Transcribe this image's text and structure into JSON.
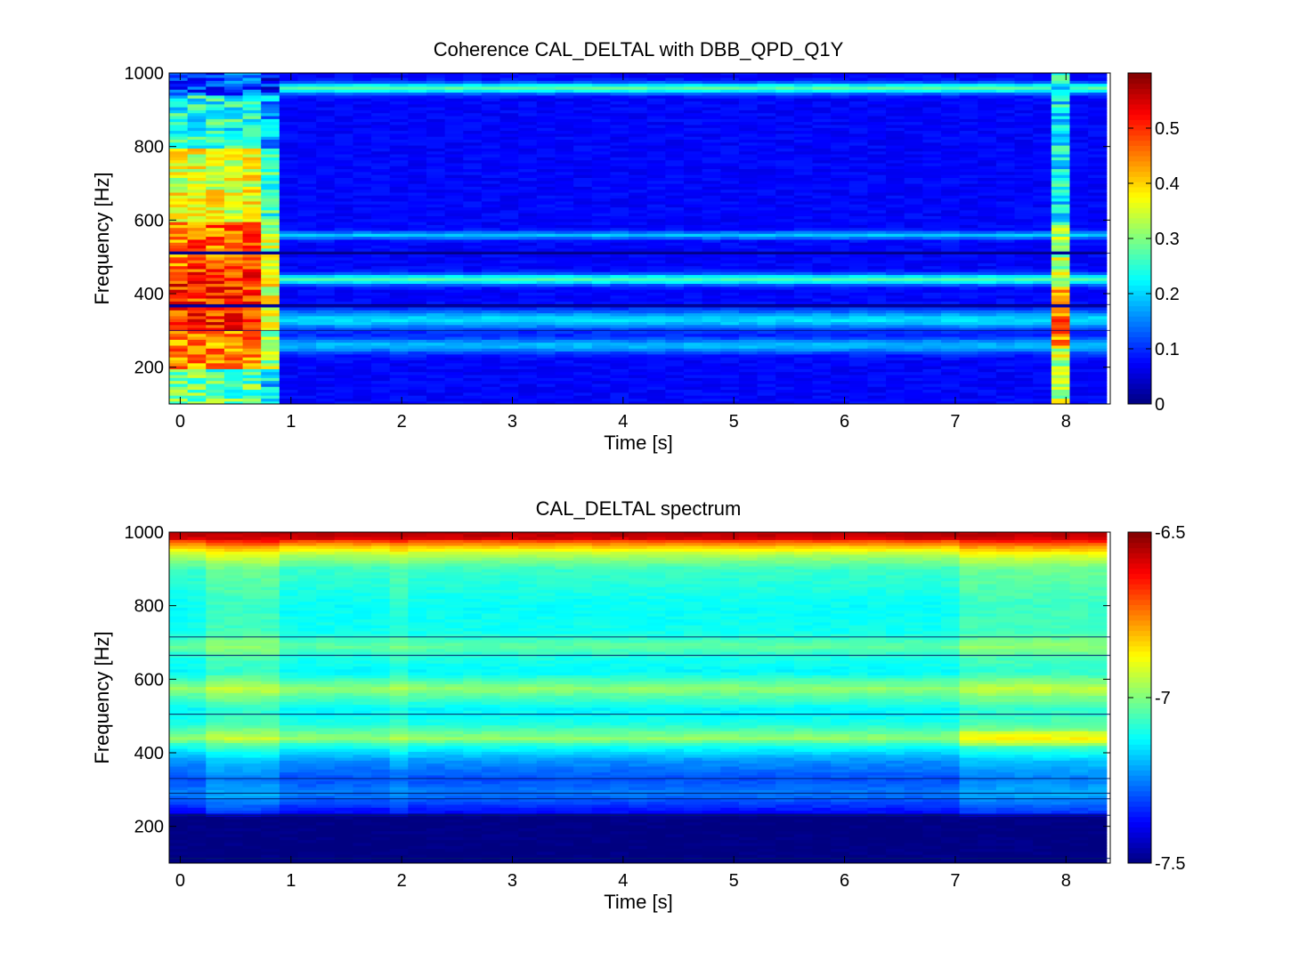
{
  "figure": {
    "background": "#ffffff"
  },
  "chart_data": [
    {
      "type": "heatmap",
      "title": "Coherence CAL_DELTAL with DBB_QPD_Q1Y",
      "xlabel": "Time [s]",
      "ylabel": "Frequency [Hz]",
      "xlim": [
        -0.1,
        8.4
      ],
      "ylim": [
        100,
        1000
      ],
      "x_ticks": [
        "0",
        "1",
        "2",
        "3",
        "4",
        "5",
        "6",
        "7",
        "8"
      ],
      "y_ticks": [
        "200",
        "400",
        "600",
        "800",
        "1000"
      ],
      "colorbar": {
        "range": [
          0,
          0.6
        ],
        "ticks": [
          "0",
          "0.1",
          "0.2",
          "0.3",
          "0.4",
          "0.5"
        ],
        "colormap": "jet"
      },
      "time_bins": 51,
      "time_step": 0.166,
      "freq_range": [
        100,
        1000
      ],
      "freq_bin_hz": 8,
      "background_level": 0.06,
      "high_coherence_time_ranges": [
        [
          -0.1,
          0.92
        ],
        [
          7.93,
          8.1
        ]
      ],
      "bands": [
        {
          "f": 960,
          "width": 14,
          "level": 0.2
        },
        {
          "f": 440,
          "width": 14,
          "level": 0.19
        },
        {
          "f": 560,
          "width": 10,
          "level": 0.12
        },
        {
          "f": 330,
          "width": 25,
          "level": 0.13
        },
        {
          "f": 260,
          "width": 20,
          "level": 0.11
        }
      ],
      "notches": [
        510,
        370,
        300
      ]
    },
    {
      "type": "heatmap",
      "title": "CAL_DELTAL spectrum",
      "xlabel": "Time [s]",
      "ylabel": "Frequency [Hz]",
      "xlim": [
        -0.1,
        8.4
      ],
      "ylim": [
        100,
        1000
      ],
      "x_ticks": [
        "0",
        "1",
        "2",
        "3",
        "4",
        "5",
        "6",
        "7",
        "8"
      ],
      "y_ticks": [
        "200",
        "400",
        "600",
        "800",
        "1000"
      ],
      "colorbar": {
        "range": [
          -7.5,
          -6.5
        ],
        "ticks": [
          "-6.5",
          "-7",
          "-7.5"
        ],
        "colormap": "jet"
      },
      "time_bins": 51,
      "time_step": 0.166,
      "freq_range": [
        100,
        1000
      ],
      "freq_bin_hz": 8,
      "profile_hz": [
        100,
        225,
        240,
        290,
        330,
        380,
        420,
        440,
        480,
        520,
        560,
        575,
        620,
        660,
        690,
        730,
        800,
        900,
        940,
        960,
        985,
        1000
      ],
      "profile_level": [
        -7.5,
        -7.5,
        -7.32,
        -7.2,
        -7.25,
        -7.18,
        -7.05,
        -6.93,
        -7.05,
        -7.08,
        -6.98,
        -6.93,
        -7.08,
        -7.05,
        -6.98,
        -7.06,
        -7.07,
        -7.02,
        -6.9,
        -6.78,
        -6.58,
        -6.55
      ],
      "sharp_lines_hz": [
        113,
        230,
        275,
        290,
        330,
        505,
        665,
        715
      ],
      "low_level_time_ranges": [
        [
          -0.1,
          0.3
        ],
        [
          0.92,
          1.9
        ],
        [
          2.1,
          7.0
        ]
      ],
      "dip_time_range": [
        1.9,
        2.1
      ]
    }
  ]
}
